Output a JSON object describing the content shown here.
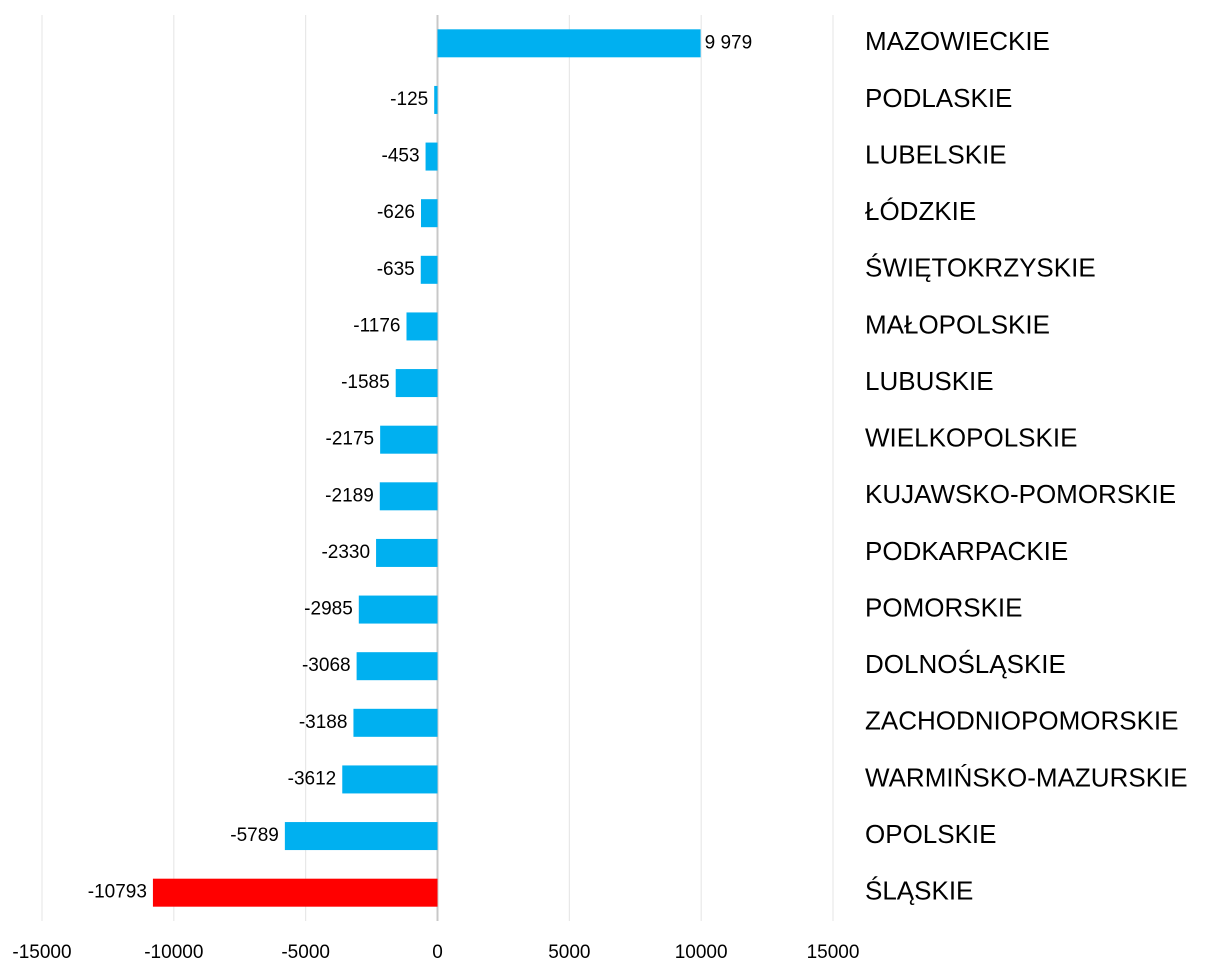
{
  "chart_data": {
    "type": "barh",
    "categories": [
      "MAZOWIECKIE",
      "PODLASKIE",
      "LUBELSKIE",
      "ŁÓDZKIE",
      "ŚWIĘTOKRZYSKIE",
      "MAŁOPOLSKIE",
      "LUBUSKIE",
      "WIELKOPOLSKIE",
      "KUJAWSKO-POMORSKIE",
      "PODKARPACKIE",
      "POMORSKIE",
      "DOLNOŚLĄSKIE",
      "ZACHODNIOPOMORSKIE",
      "WARMIŃSKO-MAZURSKIE",
      "OPOLSKIE",
      "ŚLĄSKIE"
    ],
    "values": [
      9979,
      -125,
      -453,
      -626,
      -635,
      -1176,
      -1585,
      -2175,
      -2189,
      -2330,
      -2985,
      -3068,
      -3188,
      -3612,
      -5789,
      -10793
    ],
    "value_labels": [
      "9 979",
      "-125",
      "-453",
      "-626",
      "-635",
      "-1176",
      "-1585",
      "-2175",
      "-2189",
      "-2330",
      "-2985",
      "-3068",
      "-3188",
      "-3612",
      "-5789",
      "-10793"
    ],
    "colors": [
      "#00b0f0",
      "#00b0f0",
      "#00b0f0",
      "#00b0f0",
      "#00b0f0",
      "#00b0f0",
      "#00b0f0",
      "#00b0f0",
      "#00b0f0",
      "#00b0f0",
      "#00b0f0",
      "#00b0f0",
      "#00b0f0",
      "#00b0f0",
      "#00b0f0",
      "#ff0000"
    ],
    "xlim": [
      -15000,
      15000
    ],
    "xticks": [
      -15000,
      -10000,
      -5000,
      0,
      5000,
      10000,
      15000
    ],
    "grid": true
  }
}
